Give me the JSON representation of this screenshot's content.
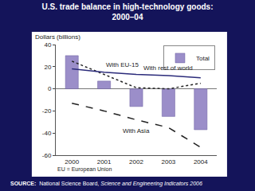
{
  "chart_data": {
    "type": "bar",
    "title": "U.S. trade balance in high-technology goods:\n2000–04",
    "y_label": "Dollars (billions)",
    "categories": [
      "2000",
      "2001",
      "2002",
      "2003",
      "2004"
    ],
    "series": [
      {
        "name": "Total",
        "type": "bar",
        "color": "#9b8ec9",
        "values": [
          30,
          7,
          -16,
          -25,
          -37
        ]
      },
      {
        "name": "With EU-15",
        "type": "line",
        "color": "#222222",
        "line_style": "dot",
        "values": [
          25,
          13,
          1,
          0,
          5
        ]
      },
      {
        "name": "With rest of world",
        "type": "line",
        "color": "#2b2b7a",
        "line_style": "solid",
        "values": [
          18,
          15,
          13,
          12,
          10
        ]
      },
      {
        "name": "With Asia",
        "type": "line",
        "color": "#222222",
        "line_style": "dash",
        "values": [
          -13,
          -20,
          -28,
          -35,
          -53
        ]
      }
    ],
    "ylim": [
      -60,
      40
    ],
    "yticks": [
      -60,
      -40,
      -20,
      0,
      20,
      40
    ],
    "grid": false,
    "legend": "top right",
    "notes": [
      "EU = European Union"
    ],
    "source_label": "SOURCE:",
    "source": "National Science Board,",
    "source_title": "Science and Engineering Indicators 2006"
  }
}
